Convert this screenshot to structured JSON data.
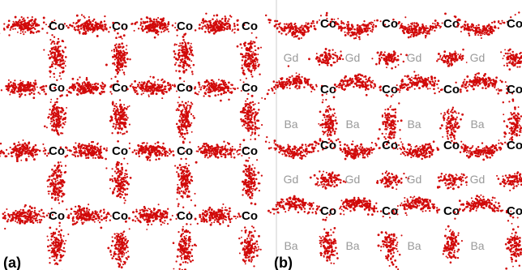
{
  "panels": [
    {
      "id": "a",
      "label": "(a)",
      "atom_labels": [
        "Co"
      ],
      "site_label": "Co"
    },
    {
      "id": "b",
      "label": "(b)",
      "atom_labels": [
        "Co",
        "Gd",
        "Ba"
      ],
      "co_label": "Co",
      "gd_label": "Gd",
      "ba_label": "Ba"
    }
  ],
  "colors": {
    "scatter": "#d10a0a",
    "co_text": "#000000",
    "gd_ba_text": "#9a9a9a",
    "divider": "#cccccc",
    "background": "#ffffff"
  },
  "icons": {
    "dot_cluster": "scatter-cluster"
  }
}
